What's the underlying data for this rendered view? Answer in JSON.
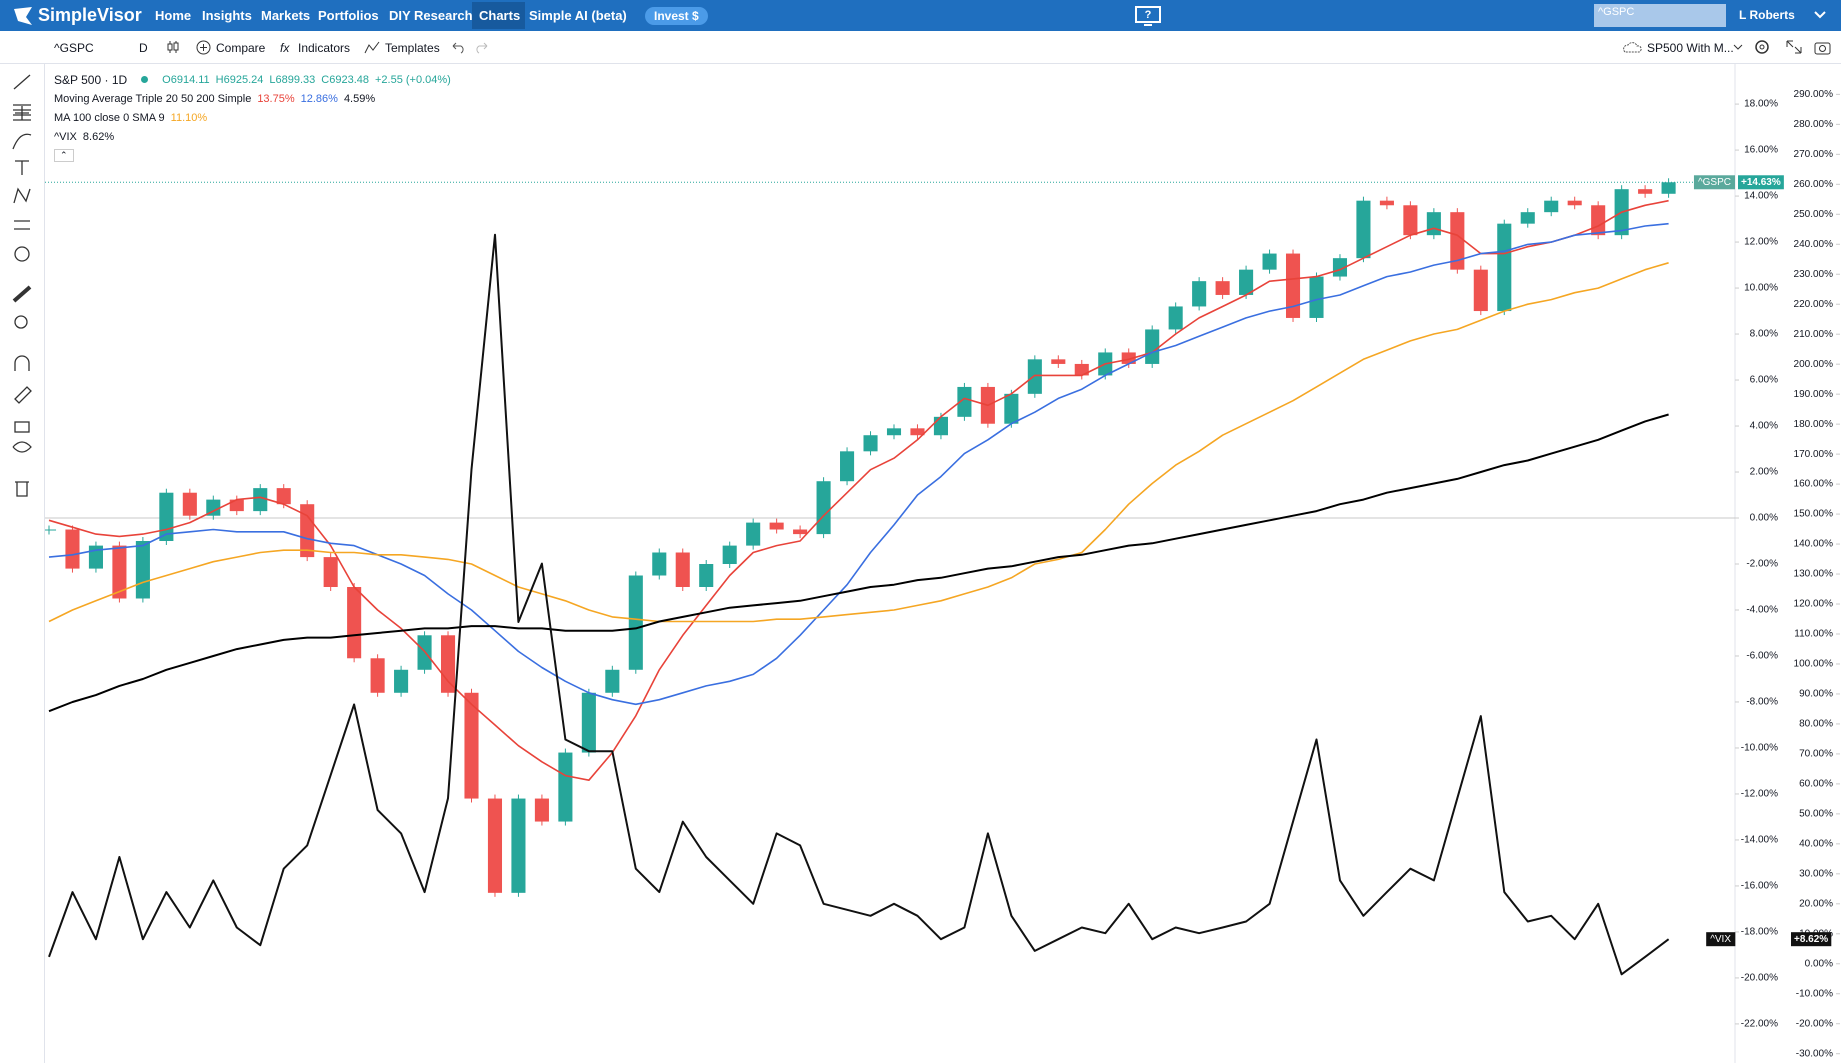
{
  "nav": {
    "logo": "SimpleVisor",
    "items": [
      "Home",
      "Insights",
      "Markets",
      "Portfolios",
      "DIY Research",
      "Charts",
      "Simple AI (beta)"
    ],
    "invest": "Invest $",
    "search": "^GSPC",
    "user": "L Roberts"
  },
  "toolbar": {
    "symbol": "^GSPC",
    "interval": "D",
    "compare": "Compare",
    "indicators": "Indicators",
    "templates": "Templates",
    "layout": "SP500 With M..."
  },
  "legend": {
    "title": "S&P 500 · 1D",
    "open": "O6914.11",
    "high": "H6925.24",
    "low": "L6899.33",
    "close": "C6923.48",
    "change": "+2.55 (+0.04%)",
    "ma_triple": "Moving Average Triple 20 50 200 Simple",
    "ma20": "13.75%",
    "ma50": "12.86%",
    "ma200": "4.59%",
    "ma100": "MA 100 close 0 SMA 9",
    "ma100_value": "11.10%",
    "vix": "^VIX",
    "vix_value": "8.62%"
  },
  "chart_data": {
    "type": "candlestick",
    "up_color": "#26a69a",
    "down_color": "#ef5350",
    "categories": [
      null,
      null,
      null,
      null,
      null,
      null,
      null,
      null,
      null,
      null,
      null,
      null,
      null,
      null,
      null,
      null,
      null,
      null,
      null,
      null,
      null,
      null,
      null,
      null,
      null,
      null,
      null,
      null,
      null,
      null,
      null,
      null,
      null,
      null,
      null,
      null,
      null,
      null,
      null,
      null,
      null,
      null,
      null,
      null,
      null,
      null,
      null,
      null,
      null,
      null,
      null,
      null,
      null,
      null,
      null,
      null,
      null,
      null,
      null,
      null,
      null,
      null,
      null,
      null,
      null,
      null,
      null,
      null,
      null,
      null
    ],
    "ylim": [
      -23.7,
      19.7
    ],
    "y2lim": [
      -33.1,
      299.8
    ],
    "yticks": [
      {
        "value": 18,
        "label": "18.00%"
      },
      {
        "value": 16,
        "label": "16.00%"
      },
      {
        "value": 14,
        "label": "14.00%"
      },
      {
        "value": 12,
        "label": "12.00%"
      },
      {
        "value": 10,
        "label": "10.00%"
      },
      {
        "value": 8,
        "label": "8.00%"
      },
      {
        "value": 6,
        "label": "6.00%"
      },
      {
        "value": 4,
        "label": "4.00%"
      },
      {
        "value": 2,
        "label": "2.00%"
      },
      {
        "value": 0,
        "label": "0.00%"
      },
      {
        "value": -2,
        "label": "-2.00%"
      },
      {
        "value": -4,
        "label": "-4.00%"
      },
      {
        "value": -6,
        "label": "-6.00%"
      },
      {
        "value": -8,
        "label": "-8.00%"
      },
      {
        "value": -10,
        "label": "-10.00%"
      },
      {
        "value": -12,
        "label": "-12.00%"
      },
      {
        "value": -14,
        "label": "-14.00%"
      },
      {
        "value": -16,
        "label": "-16.00%"
      },
      {
        "value": -18,
        "label": "-18.00%"
      },
      {
        "value": -20,
        "label": "-20.00%"
      },
      {
        "value": -22,
        "label": "-22.00%"
      }
    ],
    "y2ticks": [
      {
        "value": 290,
        "label": "290.00%"
      },
      {
        "value": 280,
        "label": "280.00%"
      },
      {
        "value": 270,
        "label": "270.00%"
      },
      {
        "value": 260,
        "label": "260.00%"
      },
      {
        "value": 250,
        "label": "250.00%"
      },
      {
        "value": 240,
        "label": "240.00%"
      },
      {
        "value": 230,
        "label": "230.00%"
      },
      {
        "value": 220,
        "label": "220.00%"
      },
      {
        "value": 210,
        "label": "210.00%"
      },
      {
        "value": 200,
        "label": "200.00%"
      },
      {
        "value": 190,
        "label": "190.00%"
      },
      {
        "value": 180,
        "label": "180.00%"
      },
      {
        "value": 170,
        "label": "170.00%"
      },
      {
        "value": 160,
        "label": "160.00%"
      },
      {
        "value": 150,
        "label": "150.00%"
      },
      {
        "value": 140,
        "label": "140.00%"
      },
      {
        "value": 130,
        "label": "130.00%"
      },
      {
        "value": 120,
        "label": "120.00%"
      },
      {
        "value": 110,
        "label": "110.00%"
      },
      {
        "value": 100,
        "label": "100.00%"
      },
      {
        "value": 90,
        "label": "90.00%"
      },
      {
        "value": 80,
        "label": "80.00%"
      },
      {
        "value": 70,
        "label": "70.00%"
      },
      {
        "value": 60,
        "label": "60.00%"
      },
      {
        "value": 50,
        "label": "50.00%"
      },
      {
        "value": 40,
        "label": "40.00%"
      },
      {
        "value": 30,
        "label": "30.00%"
      },
      {
        "value": 20,
        "label": "20.00%"
      },
      {
        "value": 10,
        "label": "10.00%"
      },
      {
        "value": 0,
        "label": "0.00%"
      },
      {
        "value": -10,
        "label": "-10.00%"
      },
      {
        "value": -20,
        "label": "-20.00%"
      },
      {
        "value": -30,
        "label": "-30.00%"
      }
    ],
    "series": [
      {
        "name": "^GSPC",
        "style": "candle",
        "color": "#26a69a",
        "tag_label": "+14.63%",
        "tag_name_color": "#5aa99c",
        "values": [
          -0.5,
          -2.2,
          -1.2,
          -3.5,
          -1.0,
          1.1,
          0.1,
          0.8,
          0.3,
          1.3,
          0.6,
          -1.7,
          -3.0,
          -6.1,
          -7.6,
          -6.6,
          -5.1,
          -7.6,
          -12.2,
          -16.3,
          -12.2,
          -13.2,
          -10.2,
          -7.6,
          -6.6,
          -2.5,
          -1.5,
          -3.0,
          -2.0,
          -1.2,
          -0.2,
          -0.5,
          -0.7,
          1.6,
          2.9,
          3.6,
          3.9,
          3.6,
          4.4,
          5.7,
          4.1,
          5.4,
          6.9,
          6.7,
          6.2,
          7.2,
          6.7,
          8.2,
          9.2,
          10.3,
          9.7,
          10.8,
          11.5,
          8.7,
          10.5,
          11.3,
          13.8,
          13.6,
          12.3,
          13.3,
          10.8,
          9.0,
          12.8,
          13.3,
          13.8,
          13.6,
          12.3,
          14.3,
          14.1,
          14.6
        ]
      },
      {
        "style": "line",
        "color": "#e8433a",
        "width": 1.6,
        "values": [
          -0.1,
          -0.4,
          -0.7,
          -0.8,
          -0.7,
          -0.5,
          -0.2,
          0.3,
          0.8,
          0.9,
          0.6,
          0.1,
          -1.2,
          -3.0,
          -4.0,
          -4.8,
          -5.8,
          -7.1,
          -8.1,
          -9.0,
          -9.9,
          -10.6,
          -11.2,
          -11.4,
          -10.2,
          -8.6,
          -6.6,
          -5.1,
          -3.8,
          -2.5,
          -1.5,
          -1.2,
          -1.0,
          0.1,
          1.1,
          2.1,
          2.6,
          3.4,
          4.4,
          5.2,
          4.9,
          5.4,
          6.2,
          6.2,
          6.2,
          6.7,
          6.9,
          7.2,
          8.0,
          8.7,
          9.2,
          9.7,
          10.3,
          10.4,
          10.5,
          10.8,
          11.3,
          11.8,
          12.3,
          12.6,
          12.3,
          11.5,
          11.5,
          11.8,
          12.0,
          12.3,
          12.7,
          13.3,
          13.6,
          13.8
        ]
      },
      {
        "style": "line",
        "color": "#3a6fe0",
        "width": 1.6,
        "values": [
          -1.7,
          -1.6,
          -1.4,
          -1.3,
          -1.2,
          -0.7,
          -0.6,
          -0.5,
          -0.6,
          -0.6,
          -0.6,
          -0.9,
          -1.1,
          -1.2,
          -1.6,
          -2.0,
          -2.5,
          -3.3,
          -4.0,
          -4.9,
          -5.8,
          -6.5,
          -7.1,
          -7.6,
          -7.9,
          -8.1,
          -7.9,
          -7.6,
          -7.3,
          -7.1,
          -6.8,
          -6.1,
          -5.1,
          -4.0,
          -2.9,
          -1.5,
          -0.3,
          1.0,
          1.8,
          2.8,
          3.4,
          4.1,
          4.6,
          5.2,
          5.6,
          6.2,
          6.7,
          7.2,
          7.5,
          7.9,
          8.3,
          8.7,
          9.0,
          9.2,
          9.5,
          9.7,
          10.1,
          10.5,
          10.7,
          11.0,
          11.2,
          11.5,
          11.6,
          11.9,
          12.0,
          12.3,
          12.4,
          12.5,
          12.7,
          12.8
        ]
      },
      {
        "style": "line",
        "color": "#f5a623",
        "width": 1.6,
        "values": [
          -4.5,
          -4.0,
          -3.6,
          -3.2,
          -2.8,
          -2.5,
          -2.2,
          -1.9,
          -1.7,
          -1.5,
          -1.4,
          -1.4,
          -1.5,
          -1.5,
          -1.6,
          -1.6,
          -1.7,
          -1.8,
          -2.0,
          -2.5,
          -3.0,
          -3.3,
          -3.6,
          -4.0,
          -4.3,
          -4.4,
          -4.5,
          -4.5,
          -4.5,
          -4.5,
          -4.5,
          -4.4,
          -4.4,
          -4.3,
          -4.2,
          -4.1,
          -4.0,
          -3.8,
          -3.6,
          -3.3,
          -3.0,
          -2.6,
          -2.0,
          -1.8,
          -1.5,
          -0.5,
          0.6,
          1.5,
          2.3,
          2.9,
          3.6,
          4.1,
          4.6,
          5.1,
          5.7,
          6.3,
          6.9,
          7.3,
          7.7,
          8.0,
          8.2,
          8.6,
          9.0,
          9.3,
          9.5,
          9.8,
          10.0,
          10.4,
          10.8,
          11.1
        ]
      },
      {
        "style": "line",
        "color": "#000000",
        "width": 2,
        "values": [
          -8.4,
          -8.0,
          -7.7,
          -7.3,
          -7.0,
          -6.6,
          -6.3,
          -6.0,
          -5.7,
          -5.5,
          -5.3,
          -5.2,
          -5.2,
          -5.1,
          -5.0,
          -4.9,
          -4.8,
          -4.8,
          -4.7,
          -4.7,
          -4.8,
          -4.8,
          -4.9,
          -4.9,
          -4.9,
          -4.8,
          -4.5,
          -4.3,
          -4.1,
          -3.9,
          -3.8,
          -3.7,
          -3.6,
          -3.4,
          -3.2,
          -3.0,
          -2.9,
          -2.7,
          -2.6,
          -2.4,
          -2.2,
          -2.1,
          -1.9,
          -1.7,
          -1.6,
          -1.4,
          -1.2,
          -1.1,
          -0.9,
          -0.7,
          -0.5,
          -0.3,
          -0.1,
          0.1,
          0.3,
          0.6,
          0.8,
          1.1,
          1.3,
          1.5,
          1.7,
          2.0,
          2.3,
          2.5,
          2.8,
          3.1,
          3.4,
          3.8,
          4.2,
          4.5
        ]
      },
      {
        "name": "^VIX",
        "style": "line",
        "axis": "y2",
        "color": "#111111",
        "width": 2,
        "tag_label": "+8.62%",
        "tag_name_color": "#111111",
        "values": [
          2.3,
          23.9,
          8.2,
          35.6,
          8.2,
          23.9,
          12.1,
          27.8,
          12.1,
          6.2,
          31.7,
          39.5,
          63.0,
          86.5,
          51.3,
          43.5,
          23.9,
          55.2,
          164.9,
          243.2,
          114.0,
          133.5,
          74.8,
          70.9,
          70.9,
          31.7,
          23.9,
          47.4,
          35.6,
          27.8,
          20.0,
          43.5,
          39.5,
          20.0,
          18.0,
          16.0,
          20.0,
          16.0,
          8.2,
          12.1,
          43.5,
          16.0,
          4.3,
          8.2,
          12.1,
          10.2,
          20.0,
          8.2,
          12.1,
          10.2,
          12.1,
          14.1,
          20.0,
          47.4,
          74.8,
          27.8,
          16.0,
          23.9,
          31.7,
          27.8,
          55.2,
          82.6,
          23.9,
          14.1,
          16.0,
          8.2,
          20.0,
          -3.5,
          2.3,
          8.2
        ]
      }
    ]
  }
}
